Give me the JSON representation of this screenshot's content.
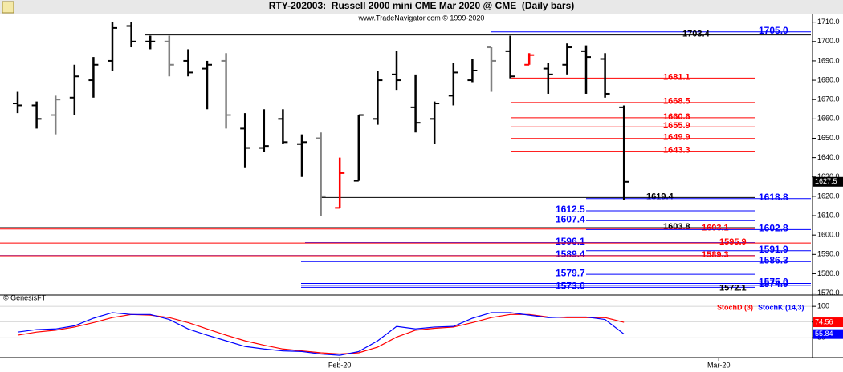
{
  "chart_data": [
    {
      "type": "ohlc",
      "title": "RTY-202003:  Russell 2000 mini CME Mar 2020 @ CME  (Daily bars)",
      "subtitle": "www.TradeNavigator.com © 1999-2020",
      "credit": "© GenesisFT",
      "categories": [
        null,
        null,
        null,
        null,
        null,
        null,
        null,
        null,
        null,
        null,
        null,
        null,
        null,
        null,
        null,
        null,
        null,
        "Feb-20",
        null,
        null,
        null,
        null,
        null,
        null,
        null,
        null,
        null,
        null,
        null,
        null,
        null,
        null,
        null,
        null,
        null,
        null,
        null,
        "Mar-20"
      ],
      "open": [
        1668,
        1667,
        1662,
        1671,
        1680,
        1690,
        1708,
        1700,
        1700,
        1690,
        1686,
        1690,
        1655,
        1645,
        1660,
        1647,
        1650,
        1614,
        1628,
        1660,
        1683,
        1666,
        1660,
        1672,
        1680,
        1697,
        1695,
        1688,
        1686,
        1688,
        1695,
        1691,
        1666,
        null,
        null,
        null,
        null,
        null
      ],
      "high": [
        1674,
        1669,
        1672,
        1688,
        1692,
        1710,
        1710,
        1703,
        1703,
        1696,
        1690,
        1694,
        1663,
        1665,
        1665,
        1652,
        1653,
        1640,
        1662,
        1685,
        1695,
        1683,
        1669,
        1689,
        1691,
        1697,
        1703,
        1694,
        1689,
        1699,
        1698,
        1694,
        1667,
        null,
        null,
        null,
        null,
        null
      ],
      "low": [
        1663,
        1655,
        1652,
        1662,
        1671,
        1685,
        1697,
        1696,
        1682,
        1682,
        1665,
        1655,
        1635,
        1643,
        1647,
        1630,
        1610,
        1614,
        1628,
        1657,
        1675,
        1653,
        1647,
        1667,
        1679,
        1674,
        1681,
        1688,
        1673,
        1683,
        1673,
        1671,
        1618.3,
        null,
        null,
        null,
        null,
        null
      ],
      "close": [
        1667,
        1660,
        1670,
        1682,
        1688,
        1707,
        1700,
        1700,
        1688,
        1684,
        1688,
        1662,
        1645,
        1646,
        1648,
        1648,
        1620,
        1632,
        1662,
        1680,
        1680,
        1658,
        1668,
        1684,
        1685,
        1690,
        1682,
        1693,
        1683,
        1697,
        1692,
        1673,
        1627.5,
        null,
        null,
        null,
        null,
        null
      ],
      "bar_colors": [
        "#000000",
        "#000000",
        "#808080",
        "#000000",
        "#000000",
        "#000000",
        "#000000",
        "#000000",
        "#808080",
        "#000000",
        "#000000",
        "#808080",
        "#000000",
        "#000000",
        "#000000",
        "#000000",
        "#808080",
        "#ff0000",
        "#000000",
        "#000000",
        "#000000",
        "#000000",
        "#000000",
        "#000000",
        "#000000",
        "#808080",
        "#000000",
        "#ff0000",
        "#000000",
        "#000000",
        "#000000",
        "#000000",
        "#000000",
        null,
        null,
        null,
        null,
        null
      ],
      "ylim": [
        1569,
        1714
      ],
      "yticks": [
        {
          "value": 1570,
          "label": "1570.0"
        },
        {
          "value": 1580,
          "label": "1580.0"
        },
        {
          "value": 1590,
          "label": "1590.0"
        },
        {
          "value": 1600,
          "label": "1600.0"
        },
        {
          "value": 1610,
          "label": "1610.0"
        },
        {
          "value": 1620,
          "label": "1620.0"
        },
        {
          "value": 1630,
          "label": "1630.0"
        },
        {
          "value": 1640,
          "label": "1640.0"
        },
        {
          "value": 1650,
          "label": "1650.0"
        },
        {
          "value": 1660,
          "label": "1660.0"
        },
        {
          "value": 1670,
          "label": "1670.0"
        },
        {
          "value": 1680,
          "label": "1680.0"
        },
        {
          "value": 1690,
          "label": "1690.0"
        },
        {
          "value": 1700,
          "label": "1700.0"
        },
        {
          "value": 1710,
          "label": "1710.0"
        }
      ],
      "levels": [
        {
          "value": 1705,
          "label": "1705.0",
          "color": "#0000ff"
        },
        {
          "value": 1703.4,
          "label": "1703.4",
          "color": "#000000"
        },
        {
          "value": 1681.1,
          "label": "1681.1",
          "color": "#ff0000"
        },
        {
          "value": 1668.5,
          "label": "1668.5",
          "color": "#ff0000"
        },
        {
          "value": 1660.6,
          "label": "1660.6",
          "color": "#ff0000"
        },
        {
          "value": 1655.9,
          "label": "1655.9",
          "color": "#ff0000"
        },
        {
          "value": 1649.9,
          "label": "1649.9",
          "color": "#ff0000"
        },
        {
          "value": 1643.3,
          "label": "1643.3",
          "color": "#ff0000"
        },
        {
          "value": 1619.4,
          "label": "1619.4",
          "color": "#000000"
        },
        {
          "value": 1618.8,
          "label": "1618.8",
          "color": "#0000ff"
        },
        {
          "value": 1612.5,
          "label": "1612.5",
          "color": "#0000ff"
        },
        {
          "value": 1607.4,
          "label": "1607.4",
          "color": "#0000ff"
        },
        {
          "value": 1603.8,
          "label": "1603.8",
          "color": "#000000"
        },
        {
          "value": 1603.1,
          "label": "1603.1",
          "color": "#ff0000"
        },
        {
          "value": 1602.8,
          "label": "1602.8",
          "color": "#0000ff"
        },
        {
          "value": 1596.1,
          "label": "1596.1",
          "color": "#0000ff"
        },
        {
          "value": 1595.9,
          "label": "1595.9",
          "color": "#ff0000"
        },
        {
          "value": 1591.9,
          "label": "1591.9",
          "color": "#0000ff"
        },
        {
          "value": 1589.4,
          "label": "1589.4",
          "color": "#0000ff"
        },
        {
          "value": 1589.3,
          "label": "1589.3",
          "color": "#ff0000"
        },
        {
          "value": 1586.3,
          "label": "1586.3",
          "color": "#0000ff"
        },
        {
          "value": 1579.7,
          "label": "1579.7",
          "color": "#0000ff"
        },
        {
          "value": 1575,
          "label": "1575.0",
          "color": "#0000ff"
        },
        {
          "value": 1574,
          "label": "1574.0",
          "color": "#0000ff"
        },
        {
          "value": 1573,
          "label": "1573.0",
          "color": "#0000ff"
        },
        {
          "value": 1572.1,
          "label": "1572.1",
          "color": "#000000"
        }
      ]
    },
    {
      "type": "line",
      "ylim": [
        17,
        113
      ],
      "yticks": [
        50,
        75,
        100
      ],
      "series": [
        {
          "name": "StochD (3)",
          "color": "#ff0000",
          "values": [
            54,
            59,
            62,
            67,
            74,
            82,
            87,
            86,
            82,
            74,
            64,
            54,
            45,
            38,
            32,
            29,
            26,
            24,
            26,
            35,
            51,
            62,
            65,
            67,
            74,
            82,
            87,
            87,
            83,
            82,
            82,
            82,
            74.56,
            null,
            null,
            null,
            null,
            null
          ]
        },
        {
          "name": "StochK (14,3)",
          "color": "#0000ff",
          "values": [
            59,
            63,
            64,
            69,
            81,
            90,
            87,
            87,
            79,
            64,
            54,
            45,
            36,
            32,
            29,
            28,
            24,
            22,
            28,
            45,
            68,
            64,
            67,
            68,
            81,
            90,
            90,
            86,
            82,
            83,
            83,
            79,
            55.84,
            null,
            null,
            null,
            null,
            null
          ]
        }
      ]
    }
  ]
}
